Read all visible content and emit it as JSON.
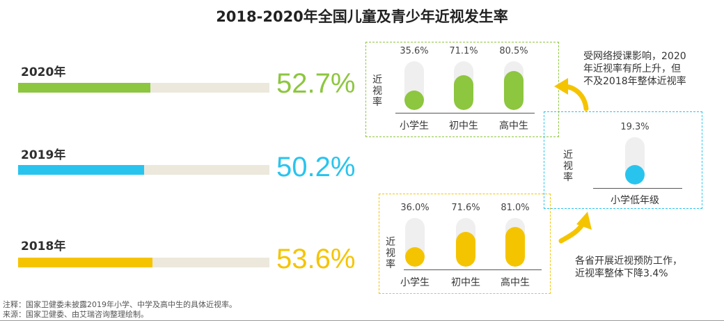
{
  "title": "2018-2020年全国儿童及青少年近视发生率",
  "colors": {
    "y2020": "#8dc63f",
    "y2019": "#29c4ee",
    "y2018": "#f5c400",
    "track": "#ece8dc"
  },
  "chart_data": [
    {
      "type": "bar",
      "categories": [
        "2020年",
        "2019年",
        "2018年"
      ],
      "values": [
        52.7,
        50.2,
        53.6
      ],
      "value_labels": [
        "52.7%",
        "50.2%",
        "53.6%"
      ],
      "ylim": [
        0,
        100
      ]
    },
    {
      "type": "bar",
      "group": "2020年",
      "ylabel": "近视率",
      "categories": [
        "小学生",
        "初中生",
        "高中生"
      ],
      "values": [
        35.6,
        71.1,
        80.5
      ],
      "value_labels": [
        "35.6%",
        "71.1%",
        "80.5%"
      ],
      "ylim": [
        0,
        100
      ]
    },
    {
      "type": "bar",
      "group": "2019年",
      "ylabel": "近视率",
      "categories": [
        "小学低年级"
      ],
      "values": [
        19.3
      ],
      "value_labels": [
        "19.3%"
      ],
      "ylim": [
        0,
        100
      ]
    },
    {
      "type": "bar",
      "group": "2018年",
      "ylabel": "近视率",
      "categories": [
        "小学生",
        "初中生",
        "高中生"
      ],
      "values": [
        36.0,
        71.6,
        81.0
      ],
      "value_labels": [
        "36.0%",
        "71.6%",
        "81.0%"
      ],
      "ylim": [
        0,
        100
      ]
    }
  ],
  "annotations": {
    "upper_lines": [
      "受网络授课影响，2020",
      "年近视率有所上升，但",
      "不及2018年整体近视率"
    ],
    "lower_lines": [
      "各省开展近视预防工作，",
      "近视率整体下降3.4%"
    ]
  },
  "footer": {
    "note": "注释：国家卫健委未披露2019年小学、中学及高中生的具体近视率。",
    "source": "来源：国家卫健委、由艾瑞咨询整理绘制。"
  }
}
